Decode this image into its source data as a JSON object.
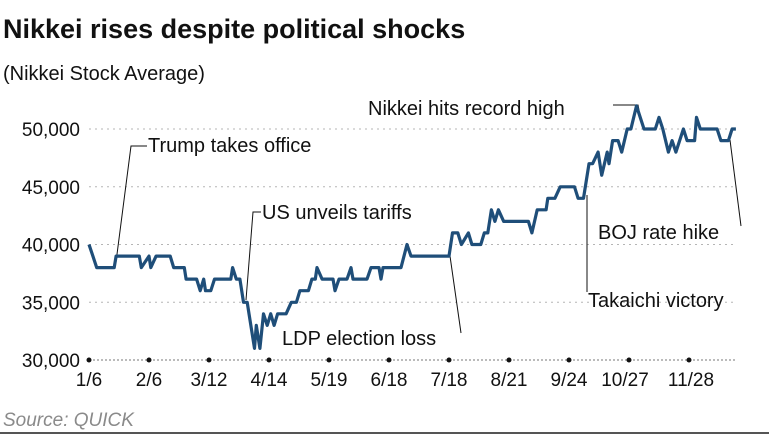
{
  "title": "Nikkei rises despite political shocks",
  "subtitle": "(Nikkei Stock Average)",
  "source": "Source: QUICK",
  "chart_data": {
    "type": "line",
    "title": "Nikkei rises despite political shocks",
    "subtitle": "(Nikkei Stock Average)",
    "xlabel": "",
    "ylabel": "",
    "ylim": [
      30000,
      52000
    ],
    "yticks": [
      30000,
      35000,
      40000,
      45000,
      50000
    ],
    "ytick_labels": [
      "30,000",
      "35,000",
      "40,000",
      "45,000",
      "50,000"
    ],
    "xticks": [
      "1/6",
      "2/6",
      "3/12",
      "4/14",
      "5/19",
      "6/18",
      "7/18",
      "8/21",
      "9/24",
      "10/27",
      "11/28"
    ],
    "grid": true,
    "line_color": "#1f4e79",
    "points": [
      [
        "1/6",
        40000
      ],
      [
        "1/8",
        39000
      ],
      [
        "1/10",
        38000
      ],
      [
        "1/19",
        38000
      ],
      [
        "1/20",
        39000
      ],
      [
        "2/1",
        39000
      ],
      [
        "2/2",
        38000
      ],
      [
        "2/6",
        39000
      ],
      [
        "2/7",
        38000
      ],
      [
        "2/10",
        39000
      ],
      [
        "2/18",
        39000
      ],
      [
        "2/20",
        38000
      ],
      [
        "2/26",
        38000
      ],
      [
        "2/27",
        37000
      ],
      [
        "3/5",
        37000
      ],
      [
        "3/7",
        36000
      ],
      [
        "3/9",
        37000
      ],
      [
        "3/10",
        36000
      ],
      [
        "3/13",
        36000
      ],
      [
        "3/15",
        37000
      ],
      [
        "3/24",
        37000
      ],
      [
        "3/25",
        38000
      ],
      [
        "3/27",
        37000
      ],
      [
        "3/29",
        37000
      ],
      [
        "3/31",
        35000
      ],
      [
        "4/2",
        35000
      ],
      [
        "4/3",
        34000
      ],
      [
        "4/6",
        31000
      ],
      [
        "4/7",
        33000
      ],
      [
        "4/9",
        31000
      ],
      [
        "4/11",
        34000
      ],
      [
        "4/13",
        33000
      ],
      [
        "4/15",
        34000
      ],
      [
        "4/17",
        33000
      ],
      [
        "4/19",
        34000
      ],
      [
        "4/24",
        34000
      ],
      [
        "4/27",
        35000
      ],
      [
        "4/30",
        35000
      ],
      [
        "5/2",
        36000
      ],
      [
        "5/7",
        36000
      ],
      [
        "5/9",
        37000
      ],
      [
        "5/11",
        37000
      ],
      [
        "5/12",
        38000
      ],
      [
        "5/15",
        37000
      ],
      [
        "5/21",
        37000
      ],
      [
        "5/22",
        36000
      ],
      [
        "5/24",
        37000
      ],
      [
        "5/28",
        37000
      ],
      [
        "5/30",
        38000
      ],
      [
        "5/31",
        37000
      ],
      [
        "6/7",
        37000
      ],
      [
        "6/9",
        38000
      ],
      [
        "6/13",
        38000
      ],
      [
        "6/14",
        37000
      ],
      [
        "6/15",
        38000
      ],
      [
        "6/24",
        38000
      ],
      [
        "6/27",
        40000
      ],
      [
        "6/29",
        39000
      ],
      [
        "7/18",
        39000
      ],
      [
        "7/20",
        41000
      ],
      [
        "7/23",
        41000
      ],
      [
        "7/25",
        40000
      ],
      [
        "7/29",
        41000
      ],
      [
        "7/31",
        40000
      ],
      [
        "8/5",
        40000
      ],
      [
        "8/7",
        41000
      ],
      [
        "8/9",
        41000
      ],
      [
        "8/11",
        43000
      ],
      [
        "8/13",
        42000
      ],
      [
        "8/15",
        43000
      ],
      [
        "8/18",
        42000
      ],
      [
        "9/1",
        42000
      ],
      [
        "9/3",
        41000
      ],
      [
        "9/6",
        43000
      ],
      [
        "9/11",
        43000
      ],
      [
        "9/12",
        44000
      ],
      [
        "9/16",
        44000
      ],
      [
        "9/19",
        45000
      ],
      [
        "9/27",
        45000
      ],
      [
        "9/29",
        44000
      ],
      [
        "10/2",
        44000
      ],
      [
        "10/5",
        47000
      ],
      [
        "10/7",
        47000
      ],
      [
        "10/10",
        48000
      ],
      [
        "10/12",
        46000
      ],
      [
        "10/15",
        48000
      ],
      [
        "10/16",
        47000
      ],
      [
        "10/18",
        49000
      ],
      [
        "10/21",
        49000
      ],
      [
        "10/23",
        48000
      ],
      [
        "10/26",
        50000
      ],
      [
        "10/28",
        50000
      ],
      [
        "10/31",
        52000
      ],
      [
        "11/4",
        50000
      ],
      [
        "11/10",
        50000
      ],
      [
        "11/12",
        51000
      ],
      [
        "11/14",
        50000
      ],
      [
        "11/17",
        48000
      ],
      [
        "11/19",
        49000
      ],
      [
        "11/21",
        48000
      ],
      [
        "11/25",
        50000
      ],
      [
        "11/27",
        49000
      ],
      [
        "12/1",
        49000
      ],
      [
        "12/2",
        51000
      ],
      [
        "12/4",
        50000
      ],
      [
        "12/13",
        50000
      ],
      [
        "12/15",
        49000
      ],
      [
        "12/19",
        49000
      ],
      [
        "12/21",
        50000
      ],
      [
        "12/23",
        50000
      ]
    ],
    "annotations": [
      {
        "text": "Trump takes office",
        "date": "1/20"
      },
      {
        "text": "US unveils tariffs",
        "date": "3/31"
      },
      {
        "text": "LDP election loss",
        "date": "7/20"
      },
      {
        "text": "Nikkei hits record high",
        "date": "10/31"
      },
      {
        "text": "Takaichi victory",
        "date": "10/5"
      },
      {
        "text": "BOJ rate hike",
        "date": "12/19"
      }
    ]
  }
}
